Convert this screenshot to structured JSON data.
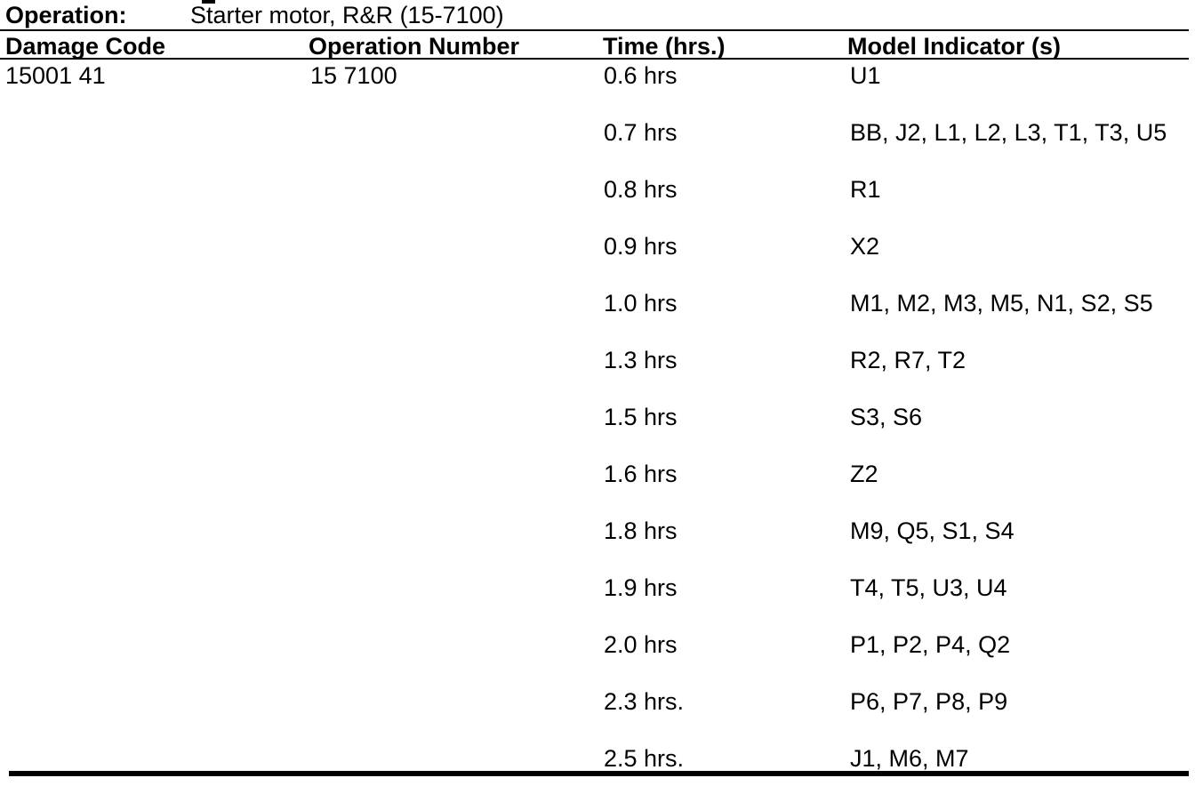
{
  "document": {
    "colors": {
      "text": "#000000",
      "background": "#ffffff"
    },
    "operation": {
      "label": "Operation:",
      "value": "Starter motor, R&R (15-7100)"
    },
    "table": {
      "headers": {
        "damage_code": "Damage Code",
        "operation_number": "Operation Number",
        "time": "Time (hrs.)",
        "model_indicators": "Model Indicator (s)"
      },
      "damage_code": "15001 41",
      "operation_number": "15 7100",
      "time_rows": [
        {
          "time": "0.6 hrs",
          "models": "U1"
        },
        {
          "time": "0.7 hrs",
          "models": "BB, J2, L1, L2, L3, T1, T3, U5"
        },
        {
          "time": "0.8 hrs",
          "models": "R1"
        },
        {
          "time": "0.9 hrs",
          "models": "X2"
        },
        {
          "time": "1.0 hrs",
          "models": "M1, M2, M3, M5, N1, S2, S5"
        },
        {
          "time": "1.3 hrs",
          "models": "R2, R7, T2"
        },
        {
          "time": "1.5 hrs",
          "models": "S3, S6"
        },
        {
          "time": "1.6 hrs",
          "models": "Z2"
        },
        {
          "time": "1.8 hrs",
          "models": "M9, Q5, S1, S4"
        },
        {
          "time": "1.9 hrs",
          "models": "T4, T5, U3, U4"
        },
        {
          "time": "2.0 hrs",
          "models": "P1, P2, P4, Q2"
        },
        {
          "time": "2.3 hrs.",
          "models": "P6, P7, P8, P9"
        },
        {
          "time": "2.5 hrs.",
          "models": "J1, M6, M7"
        }
      ]
    }
  }
}
